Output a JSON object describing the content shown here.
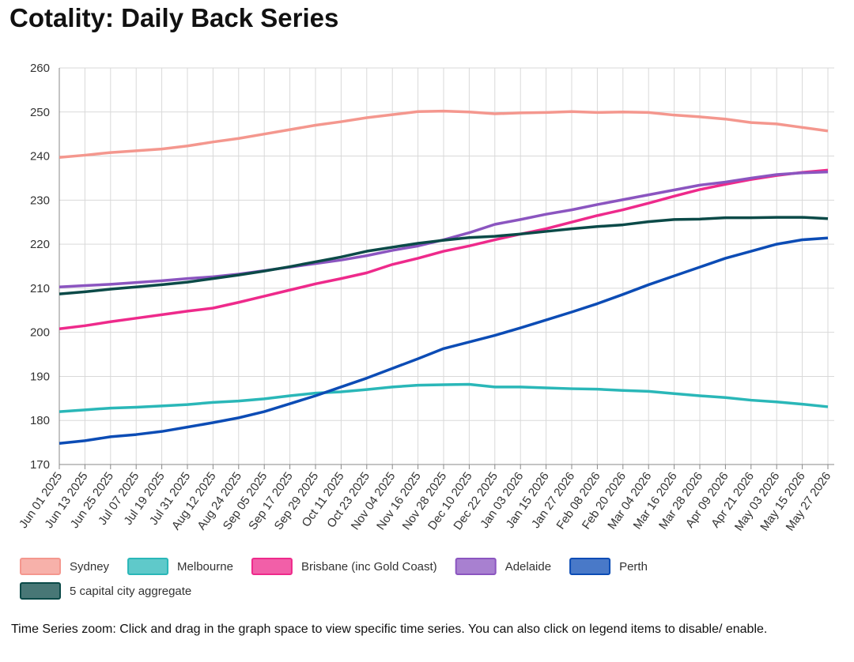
{
  "chart_data": {
    "type": "line",
    "title": "Cotality: Daily Back Series",
    "categories": [
      "Jun 01 2025",
      "Jun 13 2025",
      "Jun 25 2025",
      "Jul 07 2025",
      "Jul 19 2025",
      "Jul 31 2025",
      "Aug 12 2025",
      "Aug 24 2025",
      "Sep 05 2025",
      "Sep 17 2025",
      "Sep 29 2025",
      "Oct 11 2025",
      "Oct 23 2025",
      "Nov 04 2025",
      "Nov 16 2025",
      "Nov 28 2025",
      "Dec 10 2025",
      "Dec 22 2025",
      "Jan 03 2026",
      "Jan 15 2026",
      "Jan 27 2026",
      "Feb 08 2026",
      "Feb 20 2026",
      "Mar 04 2026",
      "Mar 16 2026",
      "Mar 28 2026",
      "Apr 09 2026",
      "Apr 21 2026",
      "May 03 2026",
      "May 15 2026",
      "May 27 2026"
    ],
    "series": [
      {
        "name": "Sydney",
        "color": "#f4978e",
        "values": [
          239.7,
          240.2,
          240.8,
          241.2,
          241.6,
          242.3,
          243.2,
          244.0,
          245.0,
          246.0,
          247.0,
          247.8,
          248.7,
          249.4,
          250.1,
          250.2,
          250.0,
          249.6,
          249.8,
          249.9,
          250.1,
          249.9,
          250.0,
          249.9,
          249.3,
          248.9,
          248.4,
          247.6,
          247.3,
          246.5,
          245.7
        ]
      },
      {
        "name": "Melbourne",
        "color": "#2ab7b8",
        "values": [
          182.0,
          182.4,
          182.8,
          183.0,
          183.3,
          183.6,
          184.1,
          184.4,
          184.9,
          185.6,
          186.2,
          186.5,
          187.0,
          187.6,
          188.0,
          188.1,
          188.2,
          187.6,
          187.6,
          187.4,
          187.2,
          187.1,
          186.8,
          186.6,
          186.1,
          185.6,
          185.2,
          184.6,
          184.2,
          183.7,
          183.1
        ]
      },
      {
        "name": "Brisbane (inc Gold Coast)",
        "color": "#ee2a8b",
        "values": [
          200.8,
          201.5,
          202.4,
          203.2,
          204.0,
          204.8,
          205.5,
          206.8,
          208.2,
          209.6,
          211.0,
          212.2,
          213.5,
          215.4,
          216.8,
          218.4,
          219.6,
          221.0,
          222.3,
          223.5,
          225.0,
          226.5,
          227.8,
          229.3,
          230.9,
          232.4,
          233.6,
          234.7,
          235.6,
          236.3,
          236.8
        ]
      },
      {
        "name": "Adelaide",
        "color": "#8b55c0",
        "values": [
          210.3,
          210.6,
          210.9,
          211.3,
          211.7,
          212.2,
          212.6,
          213.2,
          214.0,
          214.8,
          215.6,
          216.4,
          217.4,
          218.6,
          219.6,
          221.0,
          222.6,
          224.5,
          225.6,
          226.8,
          227.8,
          229.0,
          230.1,
          231.2,
          232.3,
          233.4,
          234.1,
          235.0,
          235.8,
          236.2,
          236.4
        ]
      },
      {
        "name": "Perth",
        "color": "#0c4cb5",
        "values": [
          174.8,
          175.4,
          176.3,
          176.8,
          177.5,
          178.5,
          179.5,
          180.6,
          182.0,
          183.8,
          185.6,
          187.6,
          189.6,
          191.8,
          194.0,
          196.3,
          197.8,
          199.3,
          201.0,
          202.8,
          204.6,
          206.5,
          208.6,
          210.8,
          212.8,
          214.8,
          216.8,
          218.4,
          220.0,
          221.0,
          221.4
        ]
      },
      {
        "name": "5 capital city aggregate",
        "color": "#0b4a48",
        "values": [
          208.7,
          209.2,
          209.8,
          210.3,
          210.8,
          211.4,
          212.2,
          213.0,
          213.9,
          214.9,
          216.0,
          217.1,
          218.4,
          219.3,
          220.2,
          220.9,
          221.5,
          221.8,
          222.3,
          222.9,
          223.5,
          224.0,
          224.4,
          225.1,
          225.6,
          225.7,
          226.0,
          226.0,
          226.1,
          226.1,
          225.8
        ]
      }
    ],
    "ylim": [
      170,
      260
    ],
    "yticks": [
      170,
      180,
      190,
      200,
      210,
      220,
      230,
      240,
      250,
      260
    ],
    "grid": true
  },
  "footnote": "Time Series zoom: Click and drag in the graph space to view specific time series. You can also click on legend items to disable/ enable."
}
